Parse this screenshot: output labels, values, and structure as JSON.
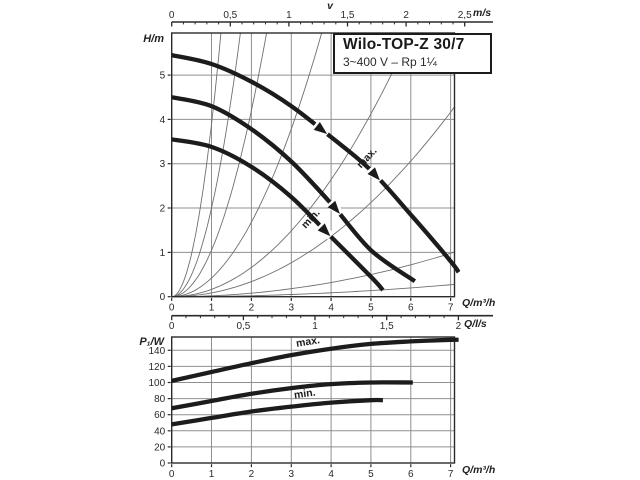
{
  "title_box": {
    "title": "Wilo-TOP-Z 30/7",
    "subtitle": "3~400 V – Rp 1¼"
  },
  "axis_labels": {
    "head": "H/m",
    "flow_m3h_top": "Q/m³/h",
    "flow_ls": "Q/l/s",
    "velocity": "v",
    "velocity_unit": "m/s",
    "power": "P₁/W",
    "flow_m3h_bottom": "Q/m³/h"
  },
  "curve_labels": {
    "hq_max": "max.",
    "hq_min": "min.",
    "p_max": "max.",
    "p_min": "min."
  },
  "colors": {
    "curve": "#1c1c1c",
    "grid": "#8f8f8f",
    "axis": "#2a2a2a",
    "thin_curve": "#6f6f6f",
    "text": "#2a2a2a",
    "background": "#ffffff"
  },
  "chart_data": [
    {
      "type": "line",
      "id": "head-flow-chart",
      "title": "Wilo-TOP-Z 30/7",
      "xlabel": "Q/m³/h",
      "ylabel": "H/m",
      "xlim": [
        0,
        7.1
      ],
      "ylim": [
        0,
        5.95
      ],
      "grid": true,
      "x_ticks": [
        0,
        1,
        2,
        3,
        4,
        5,
        6,
        7
      ],
      "y_ticks": [
        0,
        1,
        2,
        3,
        4,
        5
      ],
      "series": [
        {
          "name": "max",
          "points": [
            [
              0,
              5.45
            ],
            [
              1,
              5.25
            ],
            [
              2,
              4.85
            ],
            [
              3,
              4.3
            ],
            [
              4,
              3.6
            ],
            [
              5,
              2.85
            ],
            [
              6,
              1.85
            ],
            [
              7,
              0.8
            ],
            [
              7.2,
              0.55
            ]
          ]
        },
        {
          "name": "mid",
          "points": [
            [
              0,
              4.5
            ],
            [
              1,
              4.3
            ],
            [
              2,
              3.78
            ],
            [
              3,
              3.05
            ],
            [
              4,
              2.1
            ],
            [
              5,
              1.05
            ],
            [
              6.1,
              0.35
            ]
          ]
        },
        {
          "name": "min",
          "points": [
            [
              0,
              3.55
            ],
            [
              1,
              3.38
            ],
            [
              2,
              2.93
            ],
            [
              3,
              2.25
            ],
            [
              4,
              1.35
            ],
            [
              5,
              0.45
            ],
            [
              5.3,
              0.15
            ]
          ]
        }
      ],
      "system_curves_k": [
        3.9,
        2.0,
        1.05,
        0.42,
        0.165,
        0.085,
        0.02,
        0.0055
      ],
      "markers": [
        {
          "series": 0,
          "q": 3.75
        },
        {
          "series": 0,
          "q": 5.1
        },
        {
          "series": 1,
          "q": 4.1
        },
        {
          "series": 2,
          "q": 3.85
        }
      ]
    },
    {
      "type": "line",
      "id": "power-flow-chart",
      "title": "",
      "xlabel": "Q/m³/h",
      "ylabel": "P₁/W",
      "xlim": [
        0,
        7.1
      ],
      "ylim": [
        0,
        156
      ],
      "grid": true,
      "x_ticks": [
        0,
        1,
        2,
        3,
        4,
        5,
        6,
        7
      ],
      "y_ticks": [
        0,
        20,
        40,
        60,
        80,
        100,
        120,
        140
      ],
      "series": [
        {
          "name": "max",
          "points": [
            [
              0,
              102
            ],
            [
              1,
              113
            ],
            [
              2,
              124
            ],
            [
              3,
              134
            ],
            [
              4,
              142
            ],
            [
              5,
              148
            ],
            [
              6,
              151
            ],
            [
              7,
              153
            ],
            [
              7.2,
              153
            ]
          ]
        },
        {
          "name": "mid",
          "points": [
            [
              0,
              68
            ],
            [
              1,
              77
            ],
            [
              2,
              86
            ],
            [
              3,
              93
            ],
            [
              4,
              98
            ],
            [
              5,
              100
            ],
            [
              6.05,
              100
            ]
          ]
        },
        {
          "name": "min",
          "points": [
            [
              0,
              48
            ],
            [
              1,
              56
            ],
            [
              2,
              64
            ],
            [
              3,
              70
            ],
            [
              4,
              75
            ],
            [
              5,
              78
            ],
            [
              5.3,
              78
            ]
          ]
        }
      ]
    }
  ],
  "rulers": {
    "velocity": {
      "ticks": [
        {
          "v": 0,
          "label": "0"
        },
        {
          "v": 0.5,
          "label": "0,5"
        },
        {
          "v": 1,
          "label": "1"
        },
        {
          "v": 1.5,
          "label": "1,5"
        },
        {
          "v": 2,
          "label": "2"
        },
        {
          "v": 2.5,
          "label": "2,5"
        }
      ]
    },
    "flow_ls": {
      "ticks": [
        {
          "v": 0,
          "label": "0"
        },
        {
          "v": 0.5,
          "label": "0,5"
        },
        {
          "v": 1,
          "label": "1"
        },
        {
          "v": 1.5,
          "label": "1,5"
        },
        {
          "v": 2,
          "label": "2"
        }
      ]
    }
  }
}
